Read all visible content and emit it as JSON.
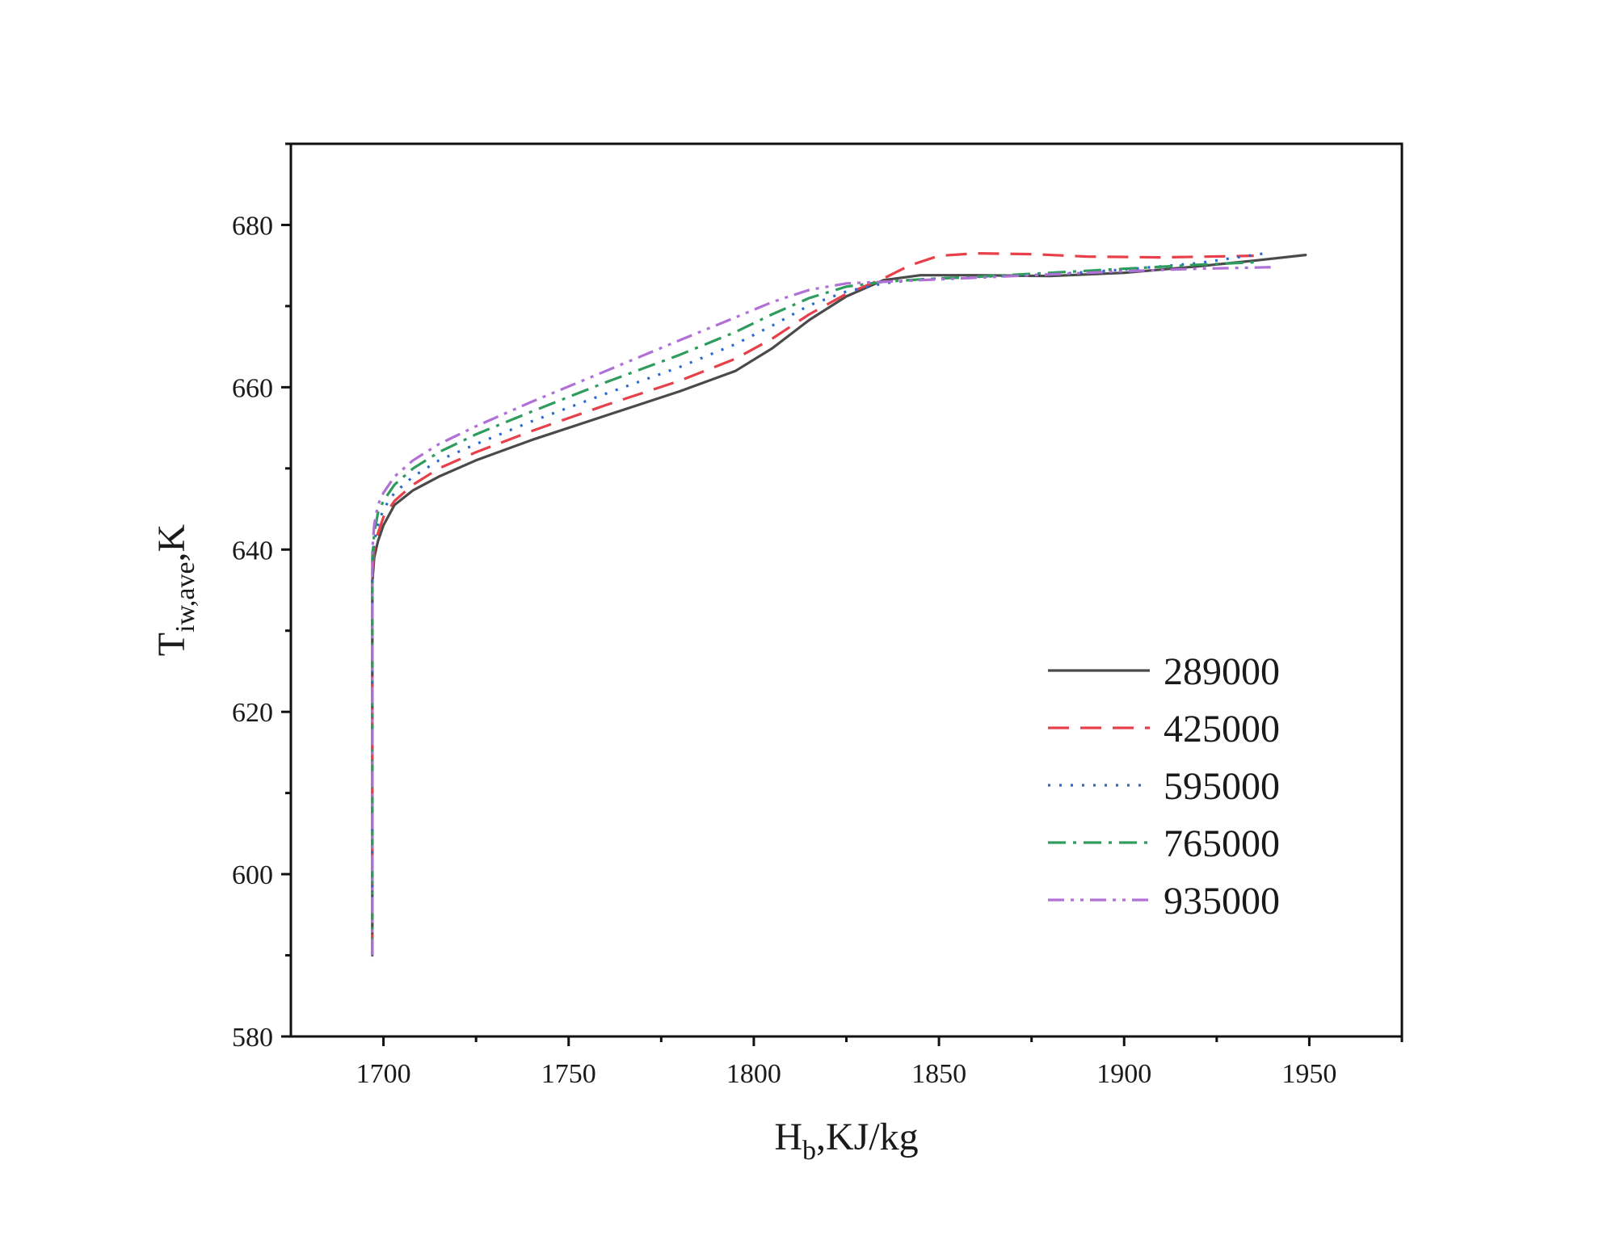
{
  "chart_data": {
    "type": "line",
    "xlabel": {
      "main": "H",
      "sub": "b",
      "rest": ",KJ/kg"
    },
    "ylabel": {
      "main": "T",
      "sub": "iw,ave",
      "rest": ",K"
    },
    "xlim": [
      1675,
      1975
    ],
    "ylim": [
      580,
      690
    ],
    "xticks": [
      1700,
      1750,
      1800,
      1850,
      1900,
      1950
    ],
    "yticks": [
      580,
      600,
      620,
      640,
      660,
      680
    ],
    "grid": false,
    "legend_position": "bottom-right",
    "series": [
      {
        "name": "289000",
        "color": "#4a4a4a",
        "dash": "solid",
        "x": [
          1697,
          1697,
          1697,
          1697.5,
          1698.5,
          1700,
          1703,
          1708,
          1715,
          1725,
          1740,
          1760,
          1780,
          1795,
          1805,
          1815,
          1825,
          1835,
          1845,
          1860,
          1880,
          1900,
          1920,
          1935,
          1949
        ],
        "y": [
          590,
          620,
          636,
          639,
          641,
          643,
          645.5,
          647.3,
          649,
          651,
          653.5,
          656.5,
          659.5,
          662,
          664.8,
          668.3,
          671.2,
          673.2,
          673.8,
          673.8,
          673.7,
          674.1,
          674.9,
          675.6,
          676.3
        ]
      },
      {
        "name": "425000",
        "color": "#e8404a",
        "dash": "dashed",
        "x": [
          1697,
          1697,
          1697,
          1697.5,
          1698.5,
          1700,
          1703,
          1708,
          1715,
          1725,
          1740,
          1760,
          1780,
          1795,
          1805,
          1815,
          1825,
          1835,
          1842,
          1850,
          1860,
          1875,
          1890,
          1910,
          1935
        ],
        "y": [
          590,
          620,
          637,
          640,
          642,
          644,
          646,
          648,
          650,
          652,
          654.6,
          657.8,
          660.8,
          663.5,
          666,
          669,
          671.5,
          673.4,
          675,
          676.2,
          676.5,
          676.4,
          676.1,
          676,
          676.2
        ]
      },
      {
        "name": "595000",
        "color": "#2a6ad0",
        "dash": "dotted",
        "x": [
          1697,
          1697,
          1697,
          1697.5,
          1698.5,
          1700,
          1703,
          1708,
          1715,
          1725,
          1740,
          1760,
          1780,
          1795,
          1805,
          1815,
          1825,
          1835,
          1845,
          1860,
          1880,
          1900,
          1920,
          1938
        ],
        "y": [
          590,
          620,
          638,
          641,
          643,
          645,
          647,
          649,
          651,
          653,
          655.8,
          659.2,
          662.5,
          665.3,
          667.6,
          670.1,
          671.8,
          672.8,
          673.3,
          673.6,
          673.9,
          674.5,
          675.3,
          676.5
        ]
      },
      {
        "name": "765000",
        "color": "#2e9c5c",
        "dash": "dashdot",
        "x": [
          1697,
          1697,
          1697,
          1697.5,
          1698.5,
          1700,
          1703,
          1708,
          1715,
          1725,
          1740,
          1760,
          1780,
          1795,
          1805,
          1815,
          1825,
          1835,
          1845,
          1860,
          1880,
          1900,
          1920,
          1935
        ],
        "y": [
          590,
          620,
          639,
          642,
          644.5,
          646,
          648,
          650,
          652,
          654.2,
          657,
          660.6,
          664,
          666.8,
          669,
          671,
          672.4,
          673,
          673.3,
          673.6,
          674.1,
          674.6,
          675.1,
          675.4
        ]
      },
      {
        "name": "935000",
        "color": "#b070d8",
        "dash": "dashdotdot",
        "x": [
          1697,
          1697,
          1697,
          1697.5,
          1698.5,
          1700,
          1703,
          1708,
          1715,
          1725,
          1740,
          1760,
          1780,
          1795,
          1805,
          1815,
          1825,
          1835,
          1845,
          1860,
          1880,
          1900,
          1920,
          1940
        ],
        "y": [
          590,
          620,
          640,
          643,
          645.5,
          647,
          649,
          651,
          653,
          655.2,
          658.2,
          662,
          665.8,
          668.6,
          670.5,
          672,
          672.8,
          673,
          673.2,
          673.5,
          673.9,
          674.3,
          674.6,
          674.8
        ]
      }
    ]
  }
}
